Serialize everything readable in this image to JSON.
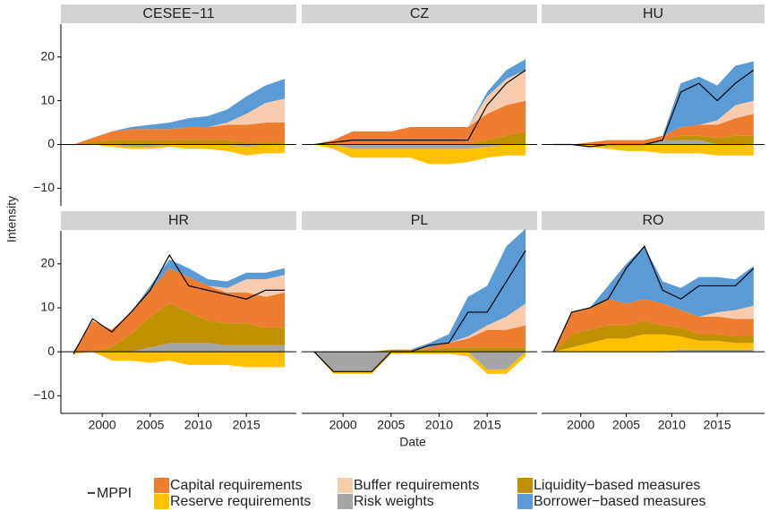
{
  "chart_data": {
    "type": "area",
    "x_label": "Date",
    "y_label": "Intensity",
    "x": [
      1997,
      1999,
      2001,
      2003,
      2005,
      2007,
      2009,
      2011,
      2013,
      2015,
      2017,
      2019
    ],
    "xlim": [
      1995.7,
      2020.2
    ],
    "xticks": [
      2000,
      2005,
      2010,
      2015
    ],
    "ylim": [
      -14,
      27.5
    ],
    "yticks": [
      {
        "value": -10,
        "label": "−10"
      },
      0,
      10,
      20
    ],
    "legend": "bottom",
    "line_name": "MPPI",
    "line_color": "#000000",
    "series": [
      {
        "name": "Capital requirements",
        "color": "#ed7d31"
      },
      {
        "name": "Buffer requirements",
        "color": "#f8cbad"
      },
      {
        "name": "Liquidity−based measures",
        "color": "#bf9000"
      },
      {
        "name": "Reserve requirements",
        "color": "#ffc000"
      },
      {
        "name": "Risk weights",
        "color": "#a5a5a5"
      },
      {
        "name": "Borrower−based measures",
        "color": "#5b9bd5"
      }
    ],
    "panels": [
      {
        "title": "CESEE−11",
        "values": [
          [
            0,
            1,
            2,
            2.5,
            2.5,
            2.5,
            3,
            3,
            3.5,
            4,
            4.5,
            4.5
          ],
          [
            0,
            0,
            0,
            0,
            0,
            0,
            0,
            0,
            0.5,
            2.5,
            4.5,
            5.5
          ],
          [
            0,
            0.5,
            1,
            1,
            1,
            1,
            1,
            1,
            1,
            0.5,
            0.5,
            0.5
          ],
          [
            0,
            0,
            -0.5,
            -0.5,
            -0.5,
            -0.5,
            -1,
            -1,
            -1.5,
            -2,
            -2,
            -2
          ],
          [
            0,
            0,
            0,
            -0.5,
            -0.5,
            0,
            0,
            0,
            0,
            -0.5,
            0,
            0
          ],
          [
            0,
            0,
            0,
            0.5,
            1,
            1.5,
            2,
            2.5,
            3,
            4,
            4,
            4.5
          ]
        ]
      },
      {
        "title": "CZ",
        "mppi": [
          0,
          0.5,
          1,
          1,
          1,
          1,
          1,
          1,
          1,
          9,
          14,
          17
        ],
        "values": [
          [
            0,
            1,
            3,
            3,
            3,
            4,
            4,
            4,
            4,
            6,
            7,
            7
          ],
          [
            0,
            0,
            0,
            0,
            0,
            0,
            0,
            0,
            0,
            4,
            6,
            7
          ],
          [
            0,
            0,
            0,
            0,
            0,
            0,
            0,
            0,
            0,
            1,
            2,
            3
          ],
          [
            0,
            -1,
            -2,
            -2,
            -2,
            -2,
            -3.5,
            -3.5,
            -3,
            -2.5,
            -2.5,
            -2.5
          ],
          [
            0,
            0,
            -1,
            -1,
            -1,
            -1,
            -1,
            -1,
            -1,
            -0.5,
            0,
            0
          ],
          [
            0,
            0,
            0,
            0,
            0,
            0,
            0,
            0,
            0,
            1,
            2,
            2.5
          ]
        ]
      },
      {
        "title": "HU",
        "mppi": [
          0,
          0,
          -0.5,
          0,
          0,
          0,
          1,
          12,
          14,
          10,
          14,
          17
        ],
        "values": [
          [
            0,
            0,
            0.5,
            1,
            1,
            1,
            1,
            2,
            2.5,
            3,
            4,
            5
          ],
          [
            0,
            0,
            0,
            0,
            0,
            0,
            0,
            0,
            0,
            1,
            3,
            3
          ],
          [
            0,
            0,
            0,
            0,
            0,
            0,
            0,
            1,
            1,
            1.5,
            2,
            2
          ],
          [
            0,
            0,
            -0.5,
            -1,
            -1.5,
            -1.5,
            -2,
            -2,
            -2,
            -2.5,
            -2.5,
            -2.5
          ],
          [
            0,
            0,
            0,
            0,
            0,
            0,
            1,
            1,
            1,
            0,
            0,
            0
          ],
          [
            0,
            0,
            0,
            0,
            0,
            0,
            0,
            10,
            11,
            8,
            9,
            9
          ]
        ]
      },
      {
        "title": "HR",
        "mppi": [
          -0.5,
          7.5,
          4.5,
          9,
          14,
          22,
          15,
          14,
          13,
          12,
          14,
          14
        ],
        "values": [
          [
            0,
            7,
            4,
            5,
            6,
            8,
            8,
            8,
            7,
            7,
            7,
            8
          ],
          [
            0,
            0,
            0,
            0,
            0,
            0,
            0,
            0,
            1,
            3,
            4,
            4
          ],
          [
            0,
            0,
            1,
            4,
            7,
            9,
            7,
            5,
            5,
            5,
            4,
            4
          ],
          [
            -0.5,
            0,
            -2,
            -2,
            -2.5,
            -2,
            -3,
            -3,
            -3,
            -3.5,
            -3.5,
            -3.5
          ],
          [
            0,
            0,
            0,
            0,
            1,
            2,
            2,
            2,
            1.5,
            1.5,
            1.5,
            1.5
          ],
          [
            0,
            0,
            0,
            0,
            1,
            2,
            2,
            1.5,
            1.5,
            1.5,
            1.5,
            1.5
          ]
        ]
      },
      {
        "title": "PL",
        "mppi": [
          0,
          -4.5,
          -4.5,
          -4.5,
          0,
          0,
          1.5,
          2,
          9,
          9,
          16,
          23
        ],
        "values": [
          [
            0,
            0,
            0,
            0,
            0,
            0,
            0.5,
            1,
            2,
            4,
            4,
            5
          ],
          [
            0,
            0,
            0,
            0,
            0,
            0,
            0,
            0,
            0.5,
            1,
            3,
            5
          ],
          [
            0,
            0,
            0,
            0,
            0.5,
            0.5,
            0.5,
            1,
            1,
            1,
            1,
            1
          ],
          [
            0,
            -0.5,
            -0.5,
            -0.5,
            -0.5,
            -0.5,
            -0.5,
            -0.5,
            -1,
            -1,
            -1,
            -1
          ],
          [
            0,
            -4.5,
            -4.5,
            -4.5,
            0,
            0,
            0,
            0,
            0,
            -4,
            -4,
            0
          ],
          [
            0,
            0,
            0,
            0,
            0,
            0,
            1,
            2,
            9,
            9,
            16,
            17
          ]
        ]
      },
      {
        "title": "RO",
        "mppi": [
          0,
          9,
          10,
          12,
          19,
          24,
          14,
          12,
          15,
          15,
          15,
          19
        ],
        "values": [
          [
            0,
            5,
            5,
            6,
            5,
            5,
            5,
            4,
            4,
            4,
            4,
            4
          ],
          [
            0,
            0,
            0,
            0,
            0,
            0,
            0,
            0,
            0,
            1,
            2,
            3
          ],
          [
            0,
            3,
            3,
            3,
            3,
            3,
            2,
            2,
            1.5,
            1.5,
            1.5,
            1.5
          ],
          [
            0,
            1,
            2,
            3,
            3,
            4,
            4,
            3,
            2,
            2,
            1.5,
            1.5
          ],
          [
            0,
            0,
            0,
            0,
            0,
            0,
            0,
            0.5,
            0.5,
            0.5,
            0.5,
            0.5
          ],
          [
            0,
            0,
            0,
            3,
            9,
            12,
            5,
            5,
            9,
            8,
            7,
            9
          ]
        ]
      }
    ]
  }
}
